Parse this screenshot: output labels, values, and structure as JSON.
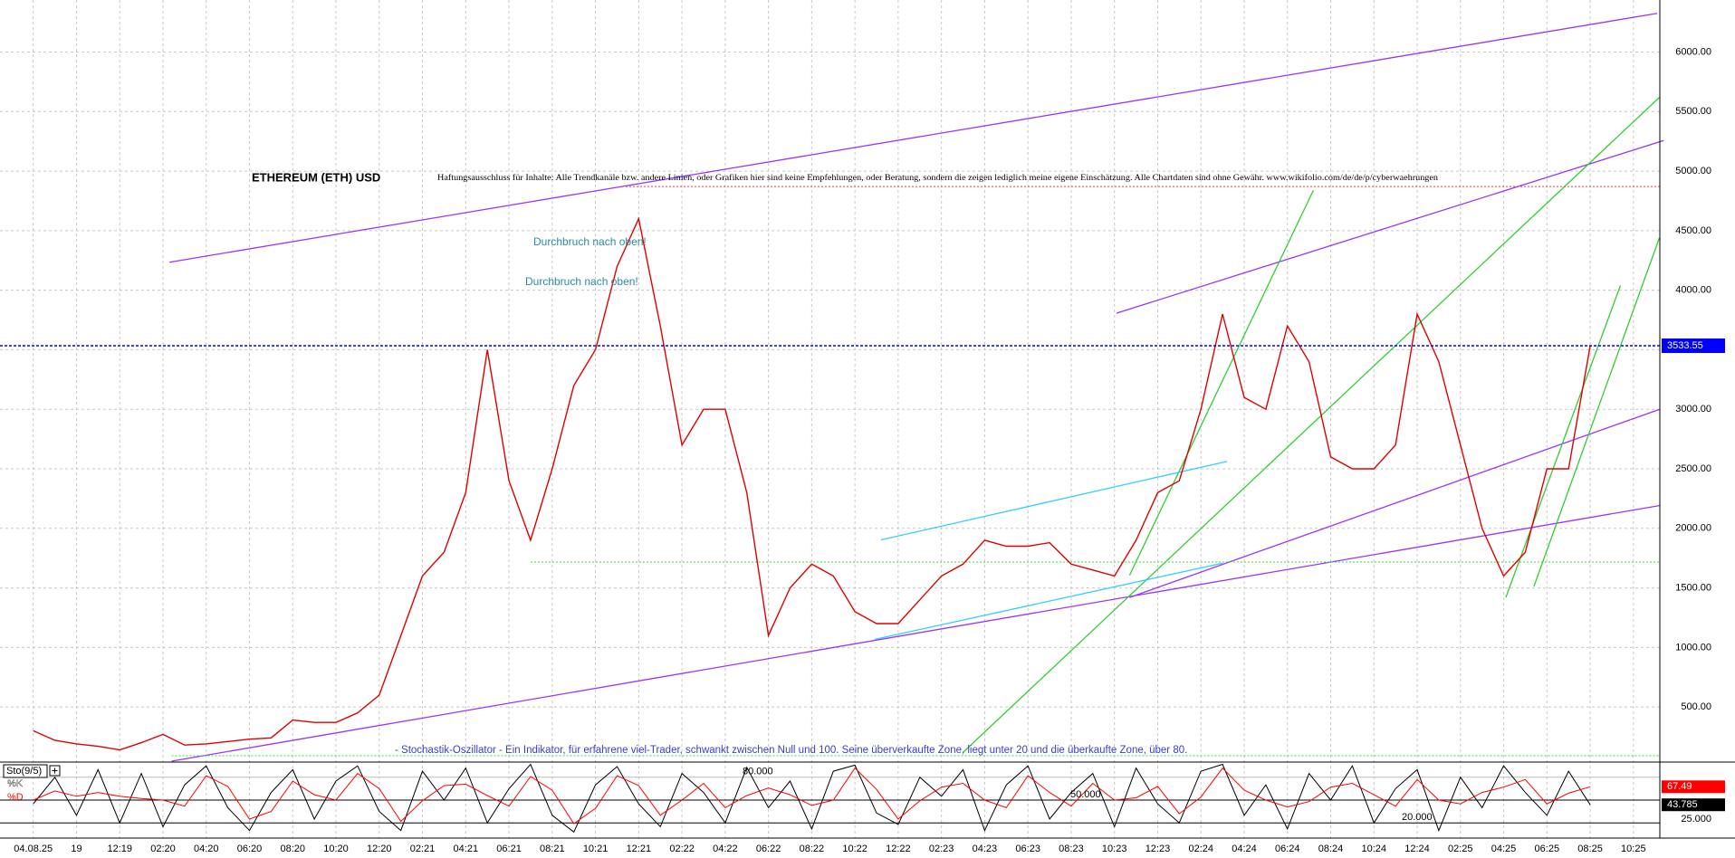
{
  "chart_data": [
    {
      "type": "line",
      "title": "ETHEREUM (ETH) USD",
      "subtitle": "Haftungsausschluss für Inhalte: Alle Trendkanäle bzw. andere Linien, oder Grafiken hier sind keine Empfehlungen, oder Beratung, sondern die zeigen lediglich meine eigene Einschätzung. Alle Chartdaten sind ohne Gewähr.  www.wikifolio.com/de/de/p/cyberwaehrungen",
      "annotations": [
        "Durchbruch nach oben!",
        "Durchbruch nach oben!",
        "- Stochastik-Oszillator - Ein Indikator, für erfahrene viel-Trader, schwankt zwischen Null und 100. Seine überverkaufte Zone, liegt unter 20 und die überkaufte Zone, über 80."
      ],
      "categories": [
        "04.08.25",
        null,
        "19",
        null,
        "12:19",
        null,
        "02:20",
        null,
        "04:20",
        null,
        "06:20",
        null,
        "08:20",
        null,
        "10:20",
        null,
        "12:20",
        null,
        "02:21",
        null,
        "04:21",
        null,
        "06:21",
        null,
        "08:21",
        null,
        "10:21",
        null,
        "12:21",
        null,
        "02:22",
        null,
        "04:22",
        null,
        "06:22",
        null,
        "08:22",
        null,
        "10:22",
        null,
        "12:22",
        null,
        "02:23",
        null,
        "04:23",
        null,
        "06:23",
        null,
        "08:23",
        null,
        "10:23",
        null,
        "12:23",
        null,
        "02:24",
        null,
        "04:24",
        null,
        "06:24",
        null,
        "08:24",
        null,
        "10:24",
        null,
        "12:24",
        null,
        "02:25",
        null,
        "04:25",
        null,
        "06:25",
        null,
        "08:25",
        null,
        "10:25"
      ],
      "values": [
        300,
        220,
        190,
        170,
        140,
        200,
        270,
        180,
        190,
        210,
        230,
        240,
        390,
        370,
        370,
        450,
        600,
        1100,
        1600,
        1800,
        2300,
        3500,
        2400,
        1900,
        2500,
        3200,
        3500,
        4200,
        4600,
        3700,
        2700,
        3000,
        3000,
        2300,
        1100,
        1500,
        1700,
        1600,
        1300,
        1200,
        1200,
        1400,
        1600,
        1700,
        1900,
        1850,
        1850,
        1880,
        1700,
        1650,
        1600,
        1900,
        2300,
        2400,
        3000,
        3800,
        3100,
        3000,
        3700,
        3400,
        2600,
        2500,
        2500,
        2700,
        3800,
        3400,
        2700,
        2000,
        1600,
        1800,
        2500,
        2500,
        3533.55,
        null,
        null
      ],
      "color": "#e00000",
      "price_line_color": "#0000ff",
      "ylim": [
        45,
        6437
      ],
      "yticks": [
        {
          "value": 500,
          "label": "500.00"
        },
        {
          "value": 1000,
          "label": "1000.00"
        },
        {
          "value": 1500,
          "label": "1500.00"
        },
        {
          "value": 2000,
          "label": "2000.00"
        },
        {
          "value": 2500,
          "label": "2500.00"
        },
        {
          "value": 3000,
          "label": "3000.00"
        },
        {
          "value": 3500,
          "label": "3500.00"
        },
        {
          "value": 4000,
          "label": "4000.00"
        },
        {
          "value": 4500,
          "label": "4500.00"
        },
        {
          "value": 5000,
          "label": "5000.00"
        },
        {
          "value": 5500,
          "label": "5500.00"
        },
        {
          "value": 6000,
          "label": "6000.00"
        }
      ],
      "grid": true,
      "trendlines": [
        {
          "color": "#9933ff",
          "x": [
            6.3,
            75.1
          ],
          "y": [
            4235,
            6325
          ]
        },
        {
          "color": "#9933ff",
          "x": [
            50.1,
            75.4
          ],
          "y": [
            3807,
            5257
          ]
        },
        {
          "color": "#9933ff",
          "x": [
            6.4,
            75.2
          ],
          "y": [
            45,
            2191
          ]
        },
        {
          "color": "#9933ff",
          "x": [
            50.7,
            75.2
          ],
          "y": [
            1420,
            2999
          ]
        },
        {
          "color": "#33cc33",
          "x": [
            43,
            75.2
          ],
          "y": [
            119,
            5619
          ]
        },
        {
          "color": "#33cc33",
          "x": [
            50.7,
            59.2
          ],
          "y": [
            1606,
            4839
          ]
        },
        {
          "color": "#33cc33",
          "x": [
            68.1,
            73.4
          ],
          "y": [
            1420,
            4040
          ]
        },
        {
          "color": "#33cc33",
          "x": [
            69.4,
            75.2
          ],
          "y": [
            1513,
            4439
          ]
        },
        {
          "color": "#33ccff",
          "x": [
            39.2,
            55.2
          ],
          "y": [
            1903,
            2562
          ]
        },
        {
          "color": "#33ccff",
          "x": [
            38.9,
            55.0
          ],
          "y": [
            1067,
            1708
          ]
        },
        {
          "color": "#ff3333",
          "style": "dotted",
          "x": [
            27.4,
            75.2
          ],
          "y": [
            4870,
            4870
          ]
        },
        {
          "color": "#33dd33",
          "style": "dotted",
          "x": [
            23.0,
            75.2
          ],
          "y": [
            1717,
            1717
          ]
        },
        {
          "color": "#33dd33",
          "style": "dotted",
          "x": [
            6.4,
            75.2
          ],
          "y": [
            91,
            91
          ]
        }
      ]
    },
    {
      "type": "line",
      "title": "Sto(9/5)",
      "ylim": [
        0,
        100
      ],
      "yticks": [
        {
          "value": 25,
          "label": "25.000"
        }
      ],
      "levels": [
        {
          "value": 80,
          "label": "80.000"
        },
        {
          "value": 50,
          "label": "50.000"
        },
        {
          "value": 20,
          "label": "20.000"
        }
      ],
      "series": [
        {
          "name": "%K",
          "color": "#000000",
          "values": [
            45,
            80,
            30,
            90,
            20,
            85,
            15,
            70,
            95,
            40,
            10,
            60,
            90,
            25,
            75,
            95,
            35,
            10,
            88,
            50,
            92,
            20,
            65,
            97,
            30,
            8,
            70,
            94,
            45,
            15,
            85,
            60,
            20,
            93,
            40,
            75,
            12,
            88,
            96,
            33,
            18,
            80,
            55,
            90,
            10,
            70,
            95,
            25,
            60,
            85,
            15,
            92,
            45,
            20,
            88,
            97,
            30,
            70,
            12,
            85,
            50,
            95,
            20,
            65,
            90,
            10,
            80,
            40,
            95,
            60,
            30,
            88,
            43.785,
            null,
            null
          ]
        },
        {
          "name": "%D",
          "color": "#ff0000",
          "values": [
            50,
            62,
            55,
            60,
            55,
            52,
            50,
            42,
            82,
            68,
            25,
            35,
            75,
            57,
            50,
            85,
            65,
            22,
            49,
            69,
            71,
            56,
            42,
            81,
            63,
            19,
            39,
            82,
            69,
            30,
            50,
            72,
            40,
            56,
            66,
            57,
            43,
            50,
            92,
            64,
            25,
            49,
            67,
            72,
            50,
            40,
            82,
            60,
            42,
            72,
            50,
            53,
            68,
            32,
            54,
            92,
            63,
            50,
            41,
            48,
            67,
            72,
            57,
            42,
            77,
            50,
            45,
            60,
            67,
            77,
            45,
            59,
            67.49,
            null,
            null
          ]
        }
      ]
    }
  ]
}
